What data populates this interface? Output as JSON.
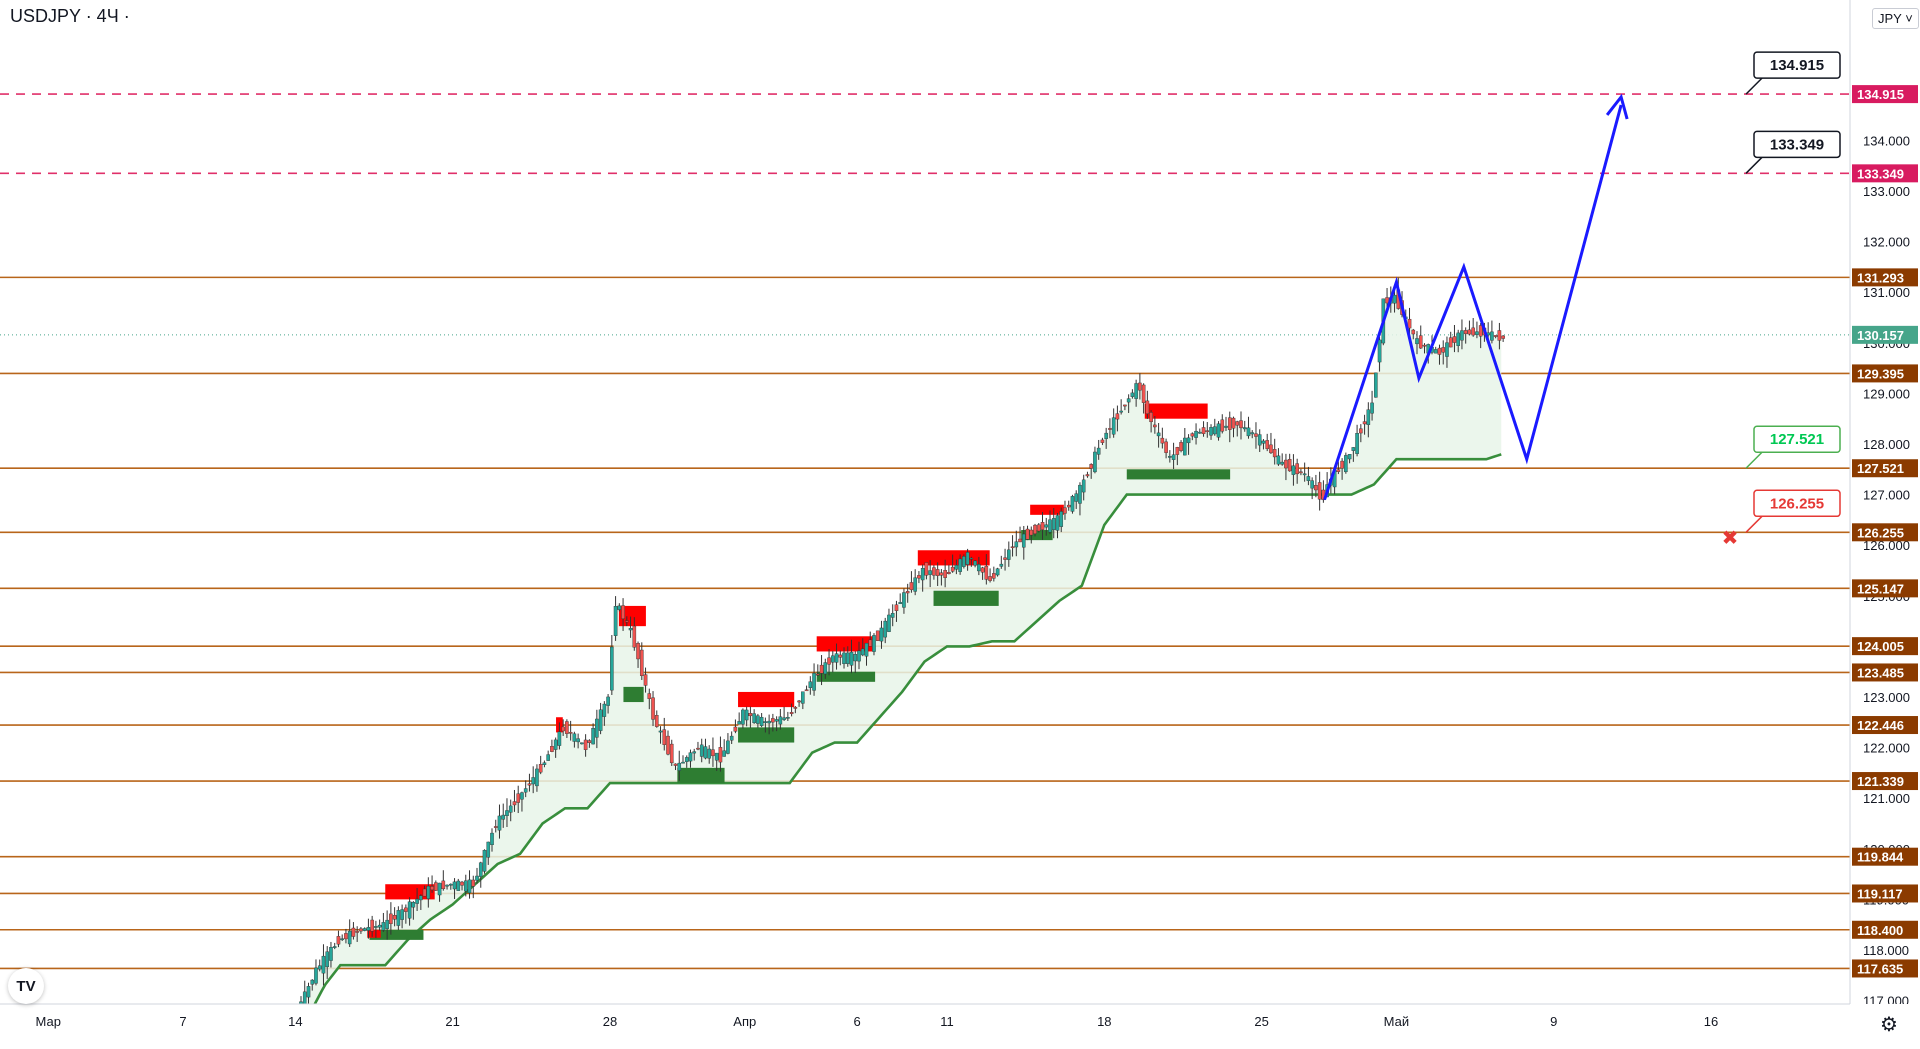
{
  "header": {
    "symbol_title": "USDJPY · 4Ч ·",
    "currency": "JPY"
  },
  "icons": {
    "logo": "tradingview-logo-icon",
    "settings": "gear-icon"
  },
  "colors": {
    "up_candle": "#26a69a",
    "down_candle": "#ef5350",
    "level_line": "#b8651a",
    "target_line": "#e0306a",
    "price_tag_bg": "#8b3b00",
    "target_tag_bg": "#d81b60",
    "trail_stop": "#388e3c",
    "trail_fill": "#e8f5e9",
    "projection": "#1a1aff",
    "last_price_tag": "#46a58a",
    "supply_zone": "#ff0000",
    "demand_zone": "#2e7d32",
    "tp_label_border": "#4caf50",
    "tp_label_text": "#00c853",
    "sl_label_border": "#e53935",
    "sl_label_text": "#e53935"
  },
  "chart_data": {
    "type": "candlestick",
    "title": "USDJPY · 4Ч",
    "x_axis": {
      "tick_labels": [
        "Мар",
        "7",
        "14",
        "21",
        "28",
        "Апр",
        "6",
        "11",
        "18",
        "25",
        "Май",
        "9",
        "16"
      ]
    },
    "y_axis": {
      "range": [
        116.5,
        135.8
      ],
      "tick_labels": [
        "117.000",
        "118.000",
        "119.000",
        "120.000",
        "121.000",
        "122.000",
        "123.000",
        "124.000",
        "125.000",
        "126.000",
        "127.000",
        "128.000",
        "129.000",
        "130.000",
        "131.000",
        "132.000",
        "133.000",
        "134.000"
      ]
    },
    "horizontal_levels": [
      131.293,
      129.395,
      127.521,
      126.255,
      125.147,
      124.005,
      123.485,
      122.446,
      121.339,
      119.844,
      119.117,
      118.4,
      117.635
    ],
    "target_levels": [
      134.915,
      133.349
    ],
    "last_price": 130.157,
    "callouts": [
      {
        "text": "134.915",
        "kind": "target"
      },
      {
        "text": "133.349",
        "kind": "target"
      },
      {
        "text": "127.521",
        "kind": "take"
      },
      {
        "text": "126.255",
        "kind": "stop"
      }
    ],
    "price_path_anchors": [
      [
        14,
        116.6
      ],
      [
        15,
        117.6
      ],
      [
        16,
        118.2
      ],
      [
        17,
        118.4
      ],
      [
        18,
        118.5
      ],
      [
        19,
        118.8
      ],
      [
        20,
        119.2
      ],
      [
        21,
        119.3
      ],
      [
        22,
        119.3
      ],
      [
        23,
        120.5
      ],
      [
        24,
        121.0
      ],
      [
        25,
        121.6
      ],
      [
        26,
        122.4
      ],
      [
        27,
        122.0
      ],
      [
        28,
        123.0
      ],
      [
        28.3,
        124.9
      ],
      [
        29,
        124.3
      ],
      [
        29.5,
        123.5
      ],
      [
        30,
        122.6
      ],
      [
        31,
        121.6
      ],
      [
        32,
        122.0
      ],
      [
        33,
        121.8
      ],
      [
        34,
        122.7
      ],
      [
        35,
        122.5
      ],
      [
        36,
        122.6
      ],
      [
        37,
        123.3
      ],
      [
        38,
        123.8
      ],
      [
        39,
        123.8
      ],
      [
        40,
        124.2
      ],
      [
        41,
        124.9
      ],
      [
        42,
        125.5
      ],
      [
        43,
        125.4
      ],
      [
        44,
        125.8
      ],
      [
        45,
        125.3
      ],
      [
        46,
        126.0
      ],
      [
        47,
        126.3
      ],
      [
        48,
        126.5
      ],
      [
        49,
        127.1
      ],
      [
        50,
        128.1
      ],
      [
        51,
        128.8
      ],
      [
        51.6,
        129.2
      ],
      [
        52,
        128.6
      ],
      [
        53,
        127.7
      ],
      [
        54,
        128.2
      ],
      [
        55,
        128.3
      ],
      [
        56,
        128.4
      ],
      [
        57,
        128.1
      ],
      [
        58,
        127.6
      ],
      [
        59,
        127.4
      ],
      [
        59.8,
        126.9
      ],
      [
        60,
        127.2
      ],
      [
        61,
        127.8
      ],
      [
        62,
        128.8
      ],
      [
        62.5,
        130.8
      ],
      [
        63,
        130.9
      ],
      [
        64,
        130.0
      ],
      [
        65,
        129.8
      ],
      [
        66,
        130.2
      ],
      [
        67,
        130.2
      ],
      [
        67.7,
        130.1
      ]
    ],
    "trailing_stop_anchors": [
      [
        14,
        116.2
      ],
      [
        15.3,
        117.3
      ],
      [
        16,
        117.7
      ],
      [
        17,
        117.7
      ],
      [
        18,
        117.7
      ],
      [
        19,
        118.2
      ],
      [
        20,
        118.6
      ],
      [
        21,
        118.9
      ],
      [
        22,
        119.3
      ],
      [
        23,
        119.7
      ],
      [
        24,
        119.9
      ],
      [
        25,
        120.5
      ],
      [
        26,
        120.8
      ],
      [
        27,
        120.8
      ],
      [
        28,
        121.3
      ],
      [
        29,
        121.3
      ],
      [
        30,
        121.3
      ],
      [
        31,
        121.3
      ],
      [
        32,
        121.3
      ],
      [
        33,
        121.3
      ],
      [
        34,
        121.3
      ],
      [
        35,
        121.3
      ],
      [
        36,
        121.3
      ],
      [
        37,
        121.9
      ],
      [
        38,
        122.1
      ],
      [
        39,
        122.1
      ],
      [
        40,
        122.6
      ],
      [
        41,
        123.1
      ],
      [
        42,
        123.7
      ],
      [
        43,
        124.0
      ],
      [
        44,
        124.0
      ],
      [
        45,
        124.1
      ],
      [
        46,
        124.1
      ],
      [
        47,
        124.5
      ],
      [
        48,
        124.9
      ],
      [
        49,
        125.2
      ],
      [
        50,
        126.4
      ],
      [
        51,
        127.0
      ],
      [
        52,
        127.0
      ],
      [
        53,
        127.0
      ],
      [
        54,
        127.0
      ],
      [
        55,
        127.0
      ],
      [
        56,
        127.0
      ],
      [
        57,
        127.0
      ],
      [
        58,
        127.0
      ],
      [
        59,
        127.0
      ],
      [
        60,
        127.0
      ],
      [
        61,
        127.0
      ],
      [
        62,
        127.2
      ],
      [
        63,
        127.7
      ],
      [
        64,
        127.7
      ],
      [
        65,
        127.7
      ],
      [
        66,
        127.7
      ],
      [
        67,
        127.7
      ],
      [
        67.7,
        127.8
      ]
    ],
    "projection_path": [
      [
        59.8,
        126.9
      ],
      [
        63,
        131.2
      ],
      [
        64,
        129.3
      ],
      [
        66,
        131.5
      ],
      [
        68.8,
        127.7
      ],
      [
        73,
        134.7
      ]
    ],
    "zones": [
      {
        "kind": "supply",
        "x0": 18,
        "x1": 20.2,
        "top": 119.3,
        "bottom": 119.0
      },
      {
        "kind": "demand",
        "x0": 17.3,
        "x1": 19.7,
        "top": 118.4,
        "bottom": 118.2
      },
      {
        "kind": "supply",
        "x0": 17.2,
        "x1": 17.8,
        "top": 118.4,
        "bottom": 118.3
      },
      {
        "kind": "supply",
        "x0": 25.6,
        "x1": 25.9,
        "top": 122.6,
        "bottom": 122.3
      },
      {
        "kind": "supply",
        "x0": 28.4,
        "x1": 29.6,
        "top": 124.8,
        "bottom": 124.4
      },
      {
        "kind": "demand",
        "x0": 28.6,
        "x1": 29.5,
        "top": 123.2,
        "bottom": 122.9
      },
      {
        "kind": "demand",
        "x0": 31,
        "x1": 33.1,
        "top": 121.6,
        "bottom": 121.3
      },
      {
        "kind": "supply",
        "x0": 33.7,
        "x1": 36.2,
        "top": 123.1,
        "bottom": 122.8
      },
      {
        "kind": "demand",
        "x0": 33.7,
        "x1": 36.2,
        "top": 122.4,
        "bottom": 122.1
      },
      {
        "kind": "supply",
        "x0": 37.2,
        "x1": 39.8,
        "top": 124.2,
        "bottom": 123.9
      },
      {
        "kind": "demand",
        "x0": 37.2,
        "x1": 39.8,
        "top": 123.5,
        "bottom": 123.3
      },
      {
        "kind": "supply",
        "x0": 41.7,
        "x1": 44.9,
        "top": 125.9,
        "bottom": 125.6
      },
      {
        "kind": "demand",
        "x0": 42.4,
        "x1": 45.3,
        "top": 125.1,
        "bottom": 124.8
      },
      {
        "kind": "supply",
        "x0": 46.7,
        "x1": 48.2,
        "top": 126.8,
        "bottom": 126.6
      },
      {
        "kind": "demand",
        "x0": 46.3,
        "x1": 47.7,
        "top": 126.3,
        "bottom": 126.1
      },
      {
        "kind": "supply",
        "x0": 51.8,
        "x1": 54.6,
        "top": 128.8,
        "bottom": 128.5
      },
      {
        "kind": "demand",
        "x0": 51.0,
        "x1": 55.6,
        "top": 127.5,
        "bottom": 127.3
      }
    ]
  }
}
